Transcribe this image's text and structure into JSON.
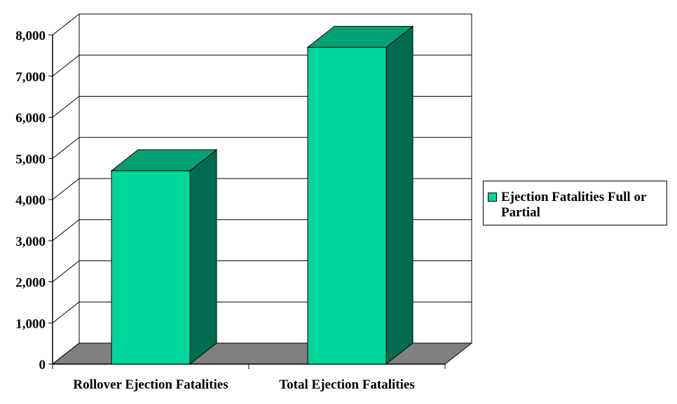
{
  "chart_data": {
    "type": "bar",
    "categories": [
      "Rollover Ejection Fatalities",
      "Total Ejection Fatalities"
    ],
    "series": [
      {
        "name": "Ejection Fatalities Full or Partial",
        "values": [
          4700,
          7700
        ]
      }
    ],
    "ylim": [
      0,
      8000
    ],
    "yticks": [
      "0",
      "1,000",
      "2,000",
      "3,000",
      "4,000",
      "5,000",
      "6,000",
      "7,000",
      "8,000"
    ],
    "xlabel": "",
    "ylabel": "",
    "grid": true,
    "legend_position": "right",
    "three_d": true,
    "colors": {
      "bar_front": "#00D59B",
      "bar_top": "#00A274",
      "bar_side": "#006B4F",
      "floor": "#808080"
    }
  }
}
